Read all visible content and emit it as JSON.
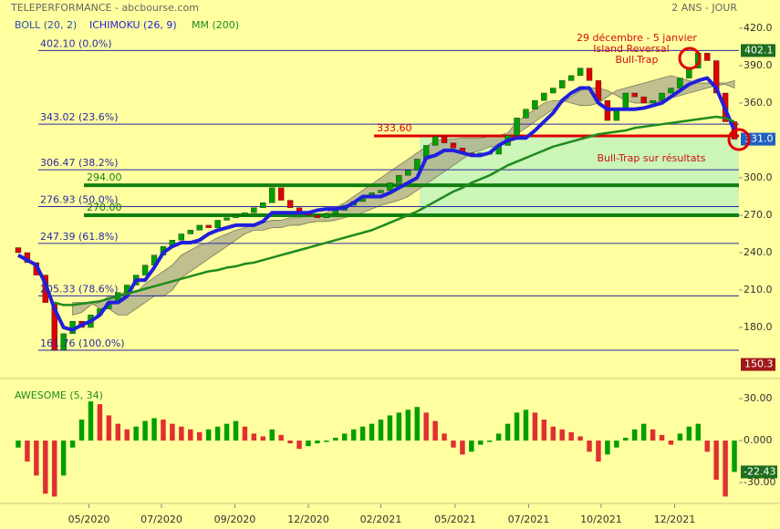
{
  "header": {
    "title": "TELEPERFORMANCE - abcbourse.com",
    "period": "2 ANS - JOUR"
  },
  "chart_data": [
    {
      "type": "candlestick",
      "xlim": [
        0,
        80
      ],
      "ylim": [
        142.7,
        428
      ],
      "yticks": [
        {
          "value": 420,
          "label": "420.0"
        },
        {
          "value": 390,
          "label": "390.0"
        },
        {
          "value": 360,
          "label": "360.0"
        },
        {
          "value": 300,
          "label": "300.0"
        },
        {
          "value": 270,
          "label": "270.0"
        },
        {
          "value": 240,
          "label": "240.0"
        },
        {
          "value": 210,
          "label": "210.0"
        },
        {
          "value": 180,
          "label": "180.0"
        }
      ],
      "open": [
        244,
        240,
        232,
        222,
        200,
        162,
        175,
        185,
        180,
        190,
        195,
        200,
        208,
        214,
        222,
        230,
        238,
        245,
        250,
        255,
        258,
        262,
        260,
        266,
        268,
        270,
        272,
        276,
        280,
        292,
        282,
        276,
        272,
        270,
        268,
        271,
        274,
        278,
        281,
        284,
        288,
        290,
        296,
        302,
        306,
        315,
        326,
        333,
        328,
        324,
        320,
        318,
        320,
        319,
        326,
        334,
        348,
        355,
        362,
        368,
        372,
        378,
        382,
        388,
        378,
        362,
        346,
        356,
        368,
        365,
        360,
        362,
        368,
        372,
        380,
        388,
        400,
        394,
        368,
        345
      ],
      "close": [
        240,
        232,
        222,
        200,
        162,
        175,
        185,
        180,
        190,
        195,
        200,
        208,
        214,
        222,
        230,
        238,
        245,
        250,
        255,
        258,
        262,
        260,
        266,
        268,
        270,
        272,
        276,
        280,
        292,
        282,
        276,
        272,
        270,
        268,
        271,
        274,
        278,
        281,
        284,
        288,
        290,
        296,
        302,
        306,
        315,
        326,
        333,
        328,
        324,
        320,
        318,
        320,
        319,
        326,
        334,
        348,
        355,
        362,
        368,
        372,
        378,
        382,
        388,
        378,
        362,
        346,
        356,
        368,
        365,
        360,
        362,
        368,
        372,
        380,
        388,
        400,
        394,
        368,
        345,
        331
      ],
      "up_color": "#00a000",
      "down_color": "#e00000",
      "series": [
        {
          "name": "BOLL (20, 2)",
          "color": "#2a4fb0"
        },
        {
          "name": "ICHIMOKU (26, 9)",
          "color": "#1f1fdd",
          "values": [
            238,
            234,
            230,
            215,
            195,
            180,
            178,
            182,
            185,
            190,
            200,
            200,
            205,
            218,
            218,
            228,
            240,
            245,
            248,
            248,
            250,
            255,
            258,
            260,
            262,
            262,
            262,
            265,
            272,
            272,
            272,
            272,
            272,
            274,
            275,
            275,
            276,
            280,
            285,
            285,
            285,
            288,
            292,
            296,
            300,
            316,
            318,
            322,
            322,
            320,
            318,
            318,
            320,
            326,
            330,
            332,
            332,
            338,
            345,
            352,
            362,
            368,
            372,
            372,
            360,
            355,
            355,
            355,
            355,
            356,
            358,
            360,
            365,
            370,
            375,
            378,
            380,
            372,
            355,
            338
          ]
        },
        {
          "name": "MM (200)",
          "color": "#1f8a1f",
          "values": [
            null,
            null,
            null,
            null,
            200,
            198,
            198,
            199,
            200,
            201,
            203,
            205,
            207,
            209,
            211,
            213,
            215,
            217,
            219,
            221,
            223,
            225,
            226,
            228,
            229,
            231,
            232,
            234,
            236,
            238,
            240,
            242,
            244,
            246,
            248,
            250,
            252,
            254,
            256,
            258,
            261,
            264,
            267,
            270,
            273,
            277,
            281,
            285,
            289,
            292,
            296,
            299,
            302,
            306,
            310,
            313,
            316,
            319,
            322,
            325,
            327,
            329,
            331,
            333,
            335,
            336,
            337,
            338,
            340,
            341,
            342,
            343,
            344,
            345,
            346,
            347,
            348,
            349,
            348,
            345
          ]
        }
      ],
      "cloud": {
        "color": "#a9a98a",
        "span_a": [
          null,
          null,
          null,
          null,
          null,
          null,
          190,
          192,
          198,
          200,
          205,
          205,
          210,
          208,
          215,
          220,
          225,
          230,
          238,
          242,
          246,
          248,
          252,
          255,
          258,
          260,
          262,
          264,
          266,
          266,
          268,
          268,
          270,
          270,
          272,
          276,
          280,
          285,
          290,
          295,
          300,
          305,
          310,
          315,
          320,
          325,
          330,
          331,
          331,
          332,
          332,
          332,
          333,
          334,
          336,
          345,
          350,
          355,
          360,
          362,
          362,
          360,
          358,
          358,
          360,
          365,
          370,
          372,
          374,
          376,
          378,
          380,
          382,
          380,
          378,
          376,
          376,
          376,
          376,
          378
        ],
        "span_b": [
          null,
          null,
          null,
          null,
          null,
          null,
          200,
          200,
          200,
          195,
          195,
          190,
          190,
          195,
          200,
          205,
          205,
          210,
          220,
          225,
          230,
          235,
          240,
          245,
          250,
          255,
          258,
          258,
          260,
          260,
          262,
          262,
          264,
          265,
          265,
          266,
          268,
          270,
          272,
          275,
          278,
          280,
          282,
          285,
          290,
          295,
          300,
          305,
          310,
          315,
          320,
          322,
          325,
          325,
          330,
          335,
          340,
          345,
          350,
          355,
          360,
          365,
          370,
          372,
          372,
          370,
          366,
          362,
          360,
          360,
          360,
          362,
          364,
          366,
          368,
          370,
          372,
          374,
          375,
          372
        ]
      },
      "fibonacci": [
        {
          "value": 402.1,
          "label": "402.10  (0.0%)"
        },
        {
          "value": 343.02,
          "label": "343.02  (23.6%)"
        },
        {
          "value": 306.47,
          "label": "306.47  (38.2%)"
        },
        {
          "value": 276.93,
          "label": "276.93  (50.0%)"
        },
        {
          "value": 247.39,
          "label": "247.39  (61.8%)"
        },
        {
          "value": 205.33,
          "label": "205.33  (78.6%)"
        },
        {
          "value": 161.76,
          "label": "161.76  (100.0%)"
        }
      ],
      "fib_color": "#2a2aa8",
      "levels": [
        {
          "value": 333.6,
          "label": "333.60",
          "color": "#e00000"
        },
        {
          "value": 294,
          "label": "294.00",
          "color": "#108010"
        },
        {
          "value": 270,
          "label": "270.00",
          "color": "#108010"
        }
      ],
      "markers": [
        {
          "value": 402.1,
          "color": "#1e6e1e"
        },
        {
          "value": 331,
          "label": "331.0",
          "color": "#2060c0"
        },
        {
          "value": 150.3,
          "color": "#a01818"
        }
      ],
      "annotations": [
        "29 décembre - 5 janvier",
        "Island Reversal",
        "Bull-Trap",
        "Bull-Trap sur résultats"
      ]
    },
    {
      "type": "bar",
      "title": "AWESOME (5, 34)",
      "xlim": [
        0,
        80
      ],
      "xticks": [
        {
          "value": 8.3,
          "label": "05/2020"
        },
        {
          "value": 16.3,
          "label": "07/2020"
        },
        {
          "value": 24.4,
          "label": "09/2020"
        },
        {
          "value": 32.5,
          "label": "12/2020"
        },
        {
          "value": 40.5,
          "label": "02/2021"
        },
        {
          "value": 48.7,
          "label": "05/2021"
        },
        {
          "value": 56.8,
          "label": "07/2021"
        },
        {
          "value": 64.8,
          "label": "10/2021"
        },
        {
          "value": 72.9,
          "label": "12/2021"
        }
      ],
      "ylim": [
        -40.4,
        41.1
      ],
      "yticks": [
        {
          "value": 30,
          "label": "30.00"
        },
        {
          "value": 0,
          "label": "0.000"
        },
        {
          "value": -30,
          "label": "-30.00"
        }
      ],
      "up_color": "#00a000",
      "down_color": "#e03030",
      "values": [
        -5,
        -15,
        -25,
        -38,
        -40,
        -25,
        -5,
        15,
        28,
        26,
        18,
        12,
        8,
        10,
        14,
        16,
        15,
        12,
        10,
        8,
        6,
        8,
        10,
        12,
        14,
        10,
        5,
        3,
        8,
        4,
        -2,
        -6,
        -4,
        -2,
        -1,
        2,
        5,
        8,
        10,
        12,
        15,
        18,
        20,
        22,
        24,
        20,
        14,
        5,
        -5,
        -10,
        -8,
        -3,
        -1,
        5,
        12,
        20,
        22,
        20,
        15,
        10,
        8,
        6,
        3,
        -8,
        -15,
        -10,
        -5,
        2,
        8,
        12,
        8,
        4,
        -3,
        5,
        10,
        12,
        -8,
        -28,
        -40,
        -22.43
      ],
      "marker": {
        "value": -22.43,
        "color": "#1e6e1e"
      }
    }
  ]
}
